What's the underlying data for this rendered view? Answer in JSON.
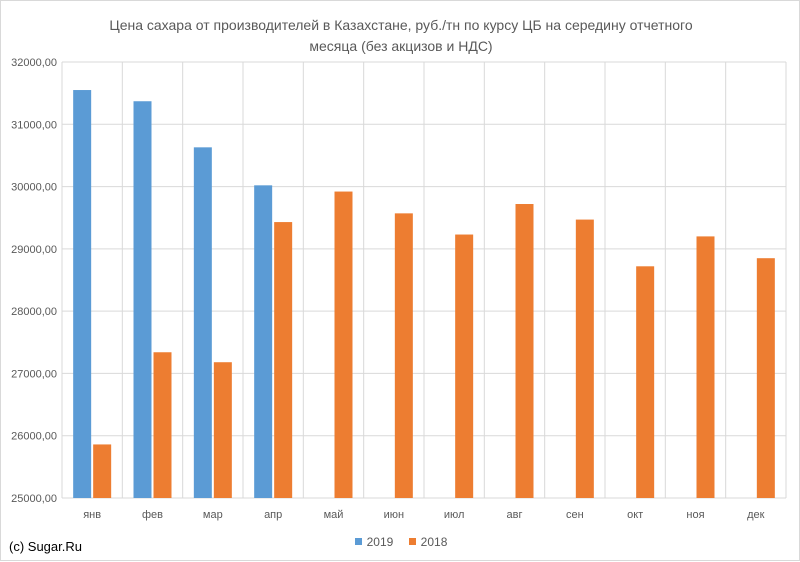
{
  "chart_data": {
    "type": "bar",
    "title_line1": "Цена сахара от производителей в Казахстане, руб./тн по курсу ЦБ на середину отчетного",
    "title_line2": "месяца (без акцизов и НДС)",
    "categories": [
      "янв",
      "фев",
      "мар",
      "апр",
      "май",
      "июн",
      "июл",
      "авг",
      "сен",
      "окт",
      "ноя",
      "дек"
    ],
    "series": [
      {
        "name": "2019",
        "color": "#5b9bd5",
        "values": [
          31550,
          31370,
          30630,
          30020,
          null,
          null,
          null,
          null,
          null,
          null,
          null,
          null
        ]
      },
      {
        "name": "2018",
        "color": "#ed7d31",
        "values": [
          25860,
          27340,
          27180,
          29430,
          29920,
          29570,
          29230,
          29720,
          29470,
          28720,
          29200,
          28850
        ]
      }
    ],
    "ylim": [
      25000,
      32000
    ],
    "yticks": [
      "25000,00",
      "26000,00",
      "27000,00",
      "28000,00",
      "29000,00",
      "30000,00",
      "31000,00",
      "32000,00"
    ],
    "grid": true,
    "legend_position": "bottom"
  },
  "footer": {
    "copyright": "(c) Sugar.Ru"
  }
}
